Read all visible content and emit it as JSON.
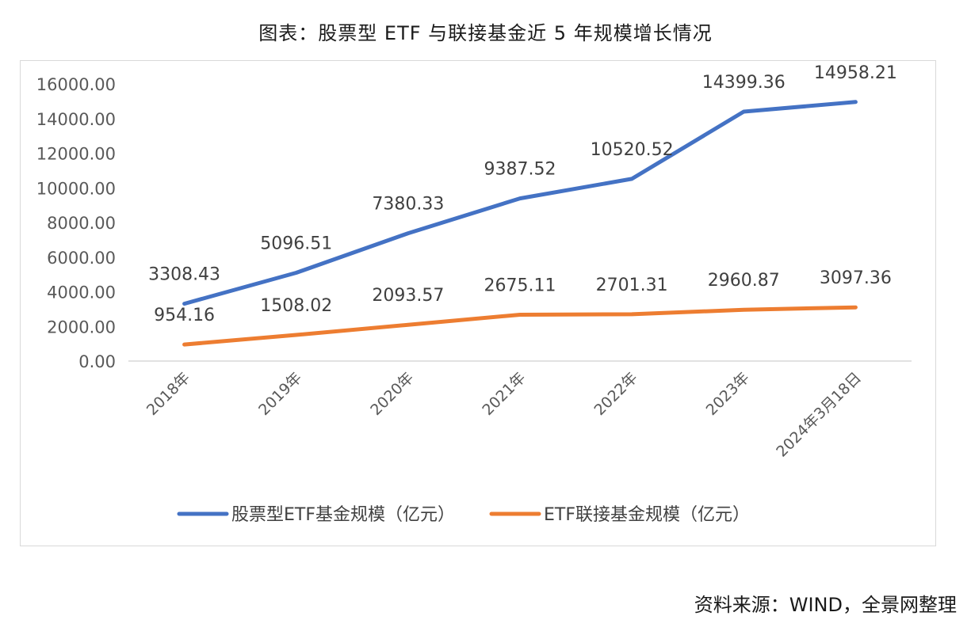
{
  "title": "图表：股票型 ETF 与联接基金近 5 年规模增长情况",
  "source": "资料来源：WIND，全景网整理",
  "chart_data": {
    "type": "line",
    "categories": [
      "2018年",
      "2019年",
      "2020年",
      "2021年",
      "2022年",
      "2023年",
      "2024年3月18日"
    ],
    "series": [
      {
        "name": "股票型ETF基金规模（亿元）",
        "color": "#4472c4",
        "values": [
          3308.43,
          5096.51,
          7380.33,
          9387.52,
          10520.52,
          14399.36,
          14958.21
        ],
        "labels": [
          "3308.43",
          "5096.51",
          "7380.33",
          "9387.52",
          "10520.52",
          "14399.36",
          "14958.21"
        ]
      },
      {
        "name": "ETF联接基金规模（亿元）",
        "color": "#ed7d31",
        "values": [
          954.16,
          1508.02,
          2093.57,
          2675.11,
          2701.31,
          2960.87,
          3097.36
        ],
        "labels": [
          "954.16",
          "1508.02",
          "2093.57",
          "2675.11",
          "2701.31",
          "2960.87",
          "3097.36"
        ]
      }
    ],
    "ylim": [
      0,
      16000
    ],
    "yticks": [
      "0.00",
      "2000.00",
      "4000.00",
      "6000.00",
      "8000.00",
      "10000.00",
      "12000.00",
      "14000.00",
      "16000.00"
    ],
    "grid": false,
    "legend_position": "bottom"
  }
}
